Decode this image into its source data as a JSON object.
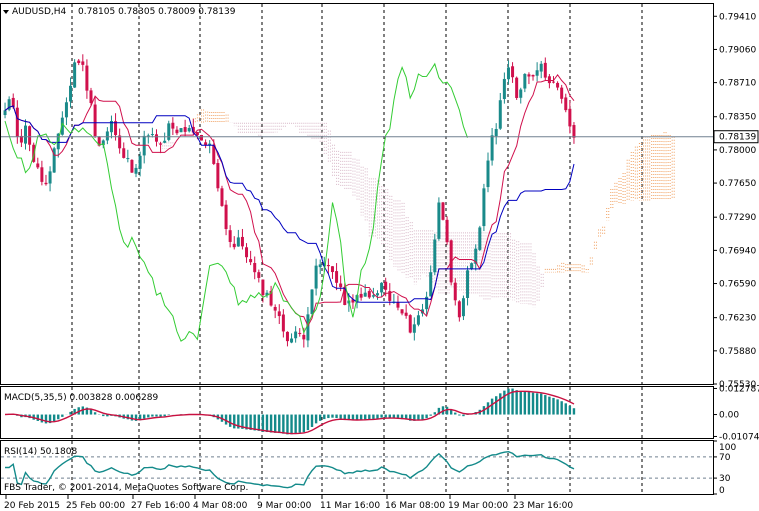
{
  "header": {
    "symbol": "AUDUSD,H4",
    "ohlc": "0.78105 0.78305 0.78009 0.78139"
  },
  "footer": {
    "copyright": "FBS Trader, © 2001-2014, MetaQuotes Software Corp."
  },
  "colors": {
    "bull_candle": "#1a8a8a",
    "bear_candle": "#d0104c",
    "tenkan": "#d0104c",
    "kijun": "#0000c0",
    "chikou": "#33cc33",
    "kumo_a": "#f0a060",
    "kumo_b": "#d8b8c8",
    "macd_hist": "#138a8a",
    "macd_signal": "#c81040",
    "rsi_line": "#138a8a",
    "price_line": "#708090",
    "grid": "#000000"
  },
  "chart_data": [
    {
      "type": "candlestick",
      "name": "main",
      "price_axis": {
        "ticks": [
          "0.79410",
          "0.79060",
          "0.78710",
          "0.78350",
          "0.78000",
          "0.77650",
          "0.77290",
          "0.76940",
          "0.76590",
          "0.76230",
          "0.75880",
          "0.75530"
        ],
        "ylim": [
          0.7553,
          0.7955
        ]
      },
      "current_price": "0.78139",
      "time_axis": {
        "labels": [
          "20 Feb 2015",
          "25 Feb 00:00",
          "27 Feb 16:00",
          "4 Mar 08:00",
          "9 Mar 00:00",
          "11 Mar 16:00",
          "16 Mar 08:00",
          "19 Mar 00:00",
          "23 Mar 16:00"
        ]
      },
      "close_path": [
        0.784,
        0.7855,
        0.7805,
        0.7825,
        0.779,
        0.777,
        0.776,
        0.78,
        0.7835,
        0.786,
        0.79,
        0.7885,
        0.785,
        0.7805,
        0.7812,
        0.783,
        0.78,
        0.779,
        0.778,
        0.7795,
        0.7822,
        0.781,
        0.78,
        0.7825,
        0.7815,
        0.7823,
        0.7818,
        0.7812,
        0.7806,
        0.7803,
        0.776,
        0.7722,
        0.7695,
        0.7705,
        0.769,
        0.767,
        0.7655,
        0.7645,
        0.7632,
        0.7612,
        0.76,
        0.7605,
        0.7605,
        0.765,
        0.768,
        0.7678,
        0.7672,
        0.766,
        0.763,
        0.7645,
        0.764,
        0.7652,
        0.764,
        0.766,
        0.7642,
        0.7635,
        0.7625,
        0.7612,
        0.7622,
        0.7635,
        0.768,
        0.7742,
        0.772,
        0.7645,
        0.7615,
        0.7668,
        0.769,
        0.773,
        0.78,
        0.7825,
        0.787,
        0.7885,
        0.7855,
        0.788,
        0.788,
        0.789,
        0.788,
        0.7872,
        0.7858,
        0.7835,
        0.7814
      ],
      "candles_count": 140
    },
    {
      "type": "histogram",
      "name": "MACD",
      "label": "MACD(5,35,5) 0.003828 0.006289",
      "axis": {
        "ticks": [
          "0.012787",
          "0.00",
          "-0.010747"
        ],
        "ylim": [
          -0.0115,
          0.0135
        ]
      },
      "series_names": [
        "MACD",
        "Signal"
      ]
    },
    {
      "type": "line",
      "name": "RSI",
      "label": "RSI(14) 50.1808",
      "axis": {
        "ticks": [
          "100",
          "70",
          "30",
          "0"
        ],
        "ylim": [
          0,
          100
        ]
      },
      "levels": [
        70,
        30
      ]
    }
  ]
}
